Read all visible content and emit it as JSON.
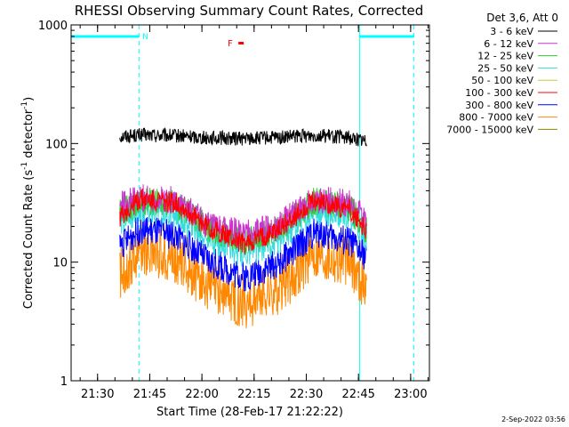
{
  "chart_data": {
    "type": "line",
    "title": "RHESSI Observing Summary Count Rates, Corrected",
    "xlabel": "Start Time (28-Feb-17 21:22:22)",
    "ylabel_main": "Corrected Count Rate (s",
    "ylabel_sup1": "-1",
    "ylabel_mid": " detector",
    "ylabel_sup2": "-1",
    "ylabel_end": ")",
    "yscale": "log",
    "ylim": [
      1,
      1000
    ],
    "y_ticks": [
      {
        "value": 1,
        "label": "1"
      },
      {
        "value": 10,
        "label": "10"
      },
      {
        "value": 100,
        "label": "100"
      },
      {
        "value": 1000,
        "label": "1000"
      }
    ],
    "x_unit": "minutes after 21:22:22",
    "xlim": [
      0,
      103
    ],
    "x_ticks": [
      {
        "value": 7.6,
        "label": "21:30"
      },
      {
        "value": 22.6,
        "label": "21:45"
      },
      {
        "value": 37.6,
        "label": "22:00"
      },
      {
        "value": 52.6,
        "label": "22:15"
      },
      {
        "value": 67.6,
        "label": "22:30"
      },
      {
        "value": 82.6,
        "label": "22:45"
      },
      {
        "value": 97.6,
        "label": "23:00"
      }
    ],
    "legend_header": "Det 3,6, Att 0",
    "legend_position": "right",
    "series": [
      {
        "name": "3 - 6 keV",
        "color": "#000000",
        "x": [
          14,
          20,
          30,
          40,
          50,
          60,
          70,
          80,
          85
        ],
        "y": [
          115,
          118,
          116,
          112,
          110,
          112,
          118,
          112,
          105
        ]
      },
      {
        "name": "6 - 12 keV",
        "color": "#cc33cc",
        "x": [
          14,
          20,
          30,
          40,
          50,
          60,
          70,
          80,
          85
        ],
        "y": [
          30,
          35,
          33,
          20,
          17,
          21,
          34,
          31,
          22
        ]
      },
      {
        "name": "12 - 25 keV",
        "color": "#33cc33",
        "x": [
          14,
          20,
          30,
          40,
          50,
          60,
          70,
          80,
          85
        ],
        "y": [
          26,
          33,
          31,
          19,
          15,
          19,
          33,
          29,
          18
        ]
      },
      {
        "name": "25 - 50 keV",
        "color": "#33dddd",
        "x": [
          14,
          20,
          30,
          40,
          50,
          60,
          70,
          80,
          85
        ],
        "y": [
          22,
          28,
          26,
          16,
          12,
          16,
          28,
          25,
          16
        ]
      },
      {
        "name": "50 - 100 keV",
        "color": "#cccc33",
        "x": [],
        "y": []
      },
      {
        "name": "100 - 300 keV",
        "color": "#ff0000",
        "x": [
          14,
          20,
          30,
          40,
          50,
          60,
          70,
          80,
          85
        ],
        "y": [
          24,
          34,
          32,
          19,
          14,
          19,
          33,
          28,
          18
        ]
      },
      {
        "name": "300 - 800 keV",
        "color": "#0000ff",
        "x": [
          14,
          20,
          30,
          40,
          50,
          60,
          70,
          80,
          85
        ],
        "y": [
          14,
          19,
          17,
          10,
          7.5,
          10,
          18,
          15,
          11
        ]
      },
      {
        "name": "800 - 7000 keV",
        "color": "#ff8800",
        "x": [
          14,
          20,
          30,
          40,
          50,
          60,
          70,
          80,
          85
        ],
        "y": [
          8,
          13,
          11,
          6,
          4.5,
          6,
          12,
          10,
          6
        ]
      },
      {
        "name": "7000 - 15000 keV",
        "color": "#888800",
        "x": [],
        "y": []
      }
    ],
    "annotations": {
      "night_label": "N",
      "flare_label": "F",
      "night_color": "#00ffff",
      "flare_color": "#ff0000",
      "night_bars": [
        [
          0,
          19.5
        ],
        [
          82.9,
          98.5
        ]
      ],
      "day_edges_solid": [
        0,
        82.9
      ],
      "night_edges_dashed": [
        19.5,
        98.5
      ],
      "flare_marker_x": 48.6
    }
  },
  "footer": {
    "timestamp": "2-Sep-2022 03:56"
  }
}
